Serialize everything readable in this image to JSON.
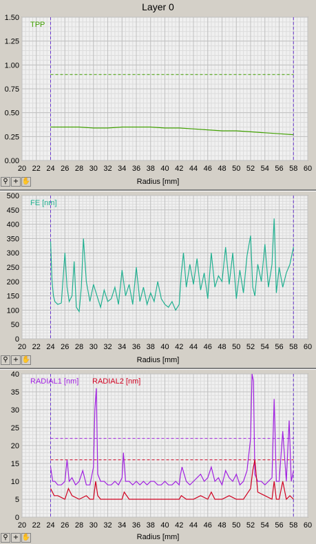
{
  "window": {
    "title": "Layer 0"
  },
  "toolbar": {
    "zoom_icon": "magnifier-icon",
    "cross_icon": "crosshair-icon",
    "pan_icon": "hand-icon"
  },
  "colors": {
    "tpp": "#40a000",
    "fe": "#20b090",
    "radial1": "#a020e0",
    "radial2": "#d00020",
    "cursor": "#6633cc",
    "grid": "#c0c0c0",
    "plot_bg": "#f0f0f0"
  },
  "chart_data": [
    {
      "type": "line",
      "xlabel": "Radius [mm]",
      "xlim": [
        20,
        60
      ],
      "x_ticks": [
        "20",
        "22",
        "24",
        "26",
        "28",
        "30",
        "32",
        "34",
        "36",
        "38",
        "40",
        "42",
        "44",
        "46",
        "48",
        "50",
        "52",
        "54",
        "56",
        "58",
        "60"
      ],
      "ylim": [
        0,
        1.5
      ],
      "y_ticks": [
        "0.00",
        "0.25",
        "0.50",
        "0.75",
        "1.00",
        "1.25",
        "1.50"
      ],
      "cursors_x": [
        24,
        58
      ],
      "thresholds": [
        {
          "y": 0.9,
          "color": "#40a000"
        }
      ],
      "series": [
        {
          "name": "TPP",
          "color": "#40a000",
          "x": [
            24,
            26,
            28,
            30,
            32,
            34,
            36,
            38,
            40,
            42,
            44,
            46,
            48,
            50,
            52,
            54,
            56,
            58
          ],
          "y": [
            0.35,
            0.35,
            0.35,
            0.34,
            0.34,
            0.35,
            0.35,
            0.35,
            0.34,
            0.34,
            0.33,
            0.32,
            0.31,
            0.31,
            0.3,
            0.29,
            0.28,
            0.27
          ]
        }
      ]
    },
    {
      "type": "line",
      "xlabel": "Radius [mm]",
      "xlim": [
        20,
        60
      ],
      "x_ticks": [
        "20",
        "22",
        "24",
        "26",
        "28",
        "30",
        "32",
        "34",
        "36",
        "38",
        "40",
        "42",
        "44",
        "46",
        "48",
        "50",
        "52",
        "54",
        "56",
        "58",
        "60"
      ],
      "ylim": [
        0,
        500
      ],
      "y_ticks": [
        "0",
        "50",
        "100",
        "150",
        "200",
        "250",
        "300",
        "350",
        "400",
        "450",
        "500"
      ],
      "cursors_x": [
        24,
        58
      ],
      "thresholds": [],
      "series": [
        {
          "name": "FE [nm]",
          "color": "#20b090",
          "x": [
            24,
            24.2,
            24.4,
            24.6,
            25,
            25.5,
            26,
            26.3,
            26.6,
            27,
            27.3,
            27.6,
            28,
            28.3,
            28.6,
            29,
            29.5,
            30,
            30.5,
            31,
            31.5,
            32,
            32.5,
            33,
            33.5,
            34,
            34.5,
            35,
            35.5,
            36,
            36.5,
            37,
            37.5,
            38,
            38.5,
            39,
            39.5,
            40,
            40.5,
            41,
            41.5,
            42,
            42.3,
            42.6,
            43,
            43.5,
            44,
            44.5,
            45,
            45.5,
            46,
            46.5,
            47,
            47.5,
            48,
            48.5,
            49,
            49.5,
            50,
            50.5,
            51,
            51.5,
            52,
            52.3,
            52.6,
            53,
            53.5,
            54,
            54.5,
            55,
            55.3,
            55.6,
            56,
            56.5,
            57,
            57.5,
            58
          ],
          "y": [
            340,
            200,
            150,
            130,
            120,
            125,
            300,
            180,
            130,
            150,
            270,
            110,
            95,
            180,
            350,
            200,
            130,
            190,
            150,
            110,
            170,
            130,
            140,
            180,
            120,
            240,
            150,
            190,
            120,
            250,
            130,
            180,
            120,
            160,
            130,
            200,
            140,
            120,
            110,
            130,
            100,
            120,
            230,
            300,
            180,
            260,
            190,
            280,
            170,
            230,
            140,
            300,
            180,
            220,
            200,
            320,
            190,
            300,
            140,
            240,
            160,
            290,
            360,
            180,
            150,
            260,
            200,
            330,
            180,
            260,
            420,
            160,
            250,
            180,
            230,
            260,
            320
          ]
        }
      ]
    },
    {
      "type": "line",
      "xlabel": "Radius [mm]",
      "xlim": [
        20,
        60
      ],
      "x_ticks": [
        "20",
        "22",
        "24",
        "26",
        "28",
        "30",
        "32",
        "34",
        "36",
        "38",
        "40",
        "42",
        "44",
        "46",
        "48",
        "50",
        "52",
        "54",
        "56",
        "58",
        "60"
      ],
      "ylim": [
        0,
        40
      ],
      "y_ticks": [
        "0",
        "5",
        "10",
        "15",
        "20",
        "25",
        "30",
        "35",
        "40"
      ],
      "cursors_x": [
        24,
        58
      ],
      "thresholds": [
        {
          "y": 22,
          "color": "#a020e0"
        },
        {
          "y": 16,
          "color": "#d00020"
        }
      ],
      "series": [
        {
          "name": "RADIAL1 [nm]",
          "color": "#a020e0",
          "x": [
            24,
            24.3,
            24.6,
            25,
            25.5,
            26,
            26.3,
            26.6,
            27,
            27.5,
            28,
            28.5,
            29,
            29.5,
            30,
            30.2,
            30.4,
            30.6,
            31,
            31.5,
            32,
            32.5,
            33,
            33.5,
            34,
            34.2,
            34.5,
            35,
            35.5,
            36,
            36.5,
            37,
            37.5,
            38,
            38.5,
            39,
            39.5,
            40,
            40.5,
            41,
            41.5,
            42,
            42.2,
            42.4,
            43,
            43.5,
            44,
            44.5,
            45,
            45.5,
            46,
            46.5,
            47,
            47.5,
            48,
            48.5,
            49,
            49.5,
            50,
            50.5,
            51,
            51.5,
            52,
            52.2,
            52.4,
            52.6,
            53,
            53.5,
            54,
            54.5,
            55,
            55.3,
            55.6,
            56,
            56.5,
            57,
            57.4,
            57.7,
            58
          ],
          "y": [
            14,
            10,
            10,
            9,
            9,
            10,
            16,
            10,
            11,
            9,
            10,
            13,
            9,
            9,
            14,
            30,
            36,
            12,
            10,
            10,
            9,
            9,
            10,
            9,
            11,
            18,
            10,
            10,
            9,
            10,
            9,
            10,
            9,
            10,
            10,
            9,
            9,
            10,
            9,
            9,
            10,
            9,
            12,
            14,
            10,
            9,
            10,
            11,
            12,
            10,
            11,
            14,
            10,
            11,
            9,
            13,
            11,
            10,
            12,
            9,
            10,
            13,
            22,
            40,
            38,
            12,
            10,
            10,
            9,
            10,
            11,
            33,
            10,
            10,
            24,
            10,
            27,
            10,
            13
          ]
        },
        {
          "name": "RADIAL2 [nm]",
          "color": "#d00020",
          "x": [
            24,
            24.5,
            25,
            26,
            26.5,
            27,
            28,
            29,
            29.5,
            30,
            30.3,
            30.6,
            31,
            32,
            33,
            34,
            34.3,
            35,
            36,
            37,
            38,
            39,
            40,
            41,
            42,
            42.3,
            43,
            44,
            45,
            46,
            46.5,
            47,
            48,
            49,
            50,
            51,
            52,
            52.3,
            52.6,
            53,
            54,
            55,
            55.3,
            55.6,
            56,
            56.5,
            57,
            57.5,
            58
          ],
          "y": [
            8,
            6,
            6,
            5,
            8,
            6,
            5,
            6,
            5,
            5,
            10,
            6,
            5,
            5,
            5,
            5,
            7,
            5,
            5,
            5,
            5,
            5,
            5,
            5,
            5,
            6,
            5,
            5,
            6,
            5,
            7,
            5,
            5,
            6,
            5,
            5,
            8,
            13,
            16,
            7,
            6,
            5,
            10,
            5,
            5,
            10,
            5,
            6,
            5
          ]
        }
      ]
    }
  ]
}
